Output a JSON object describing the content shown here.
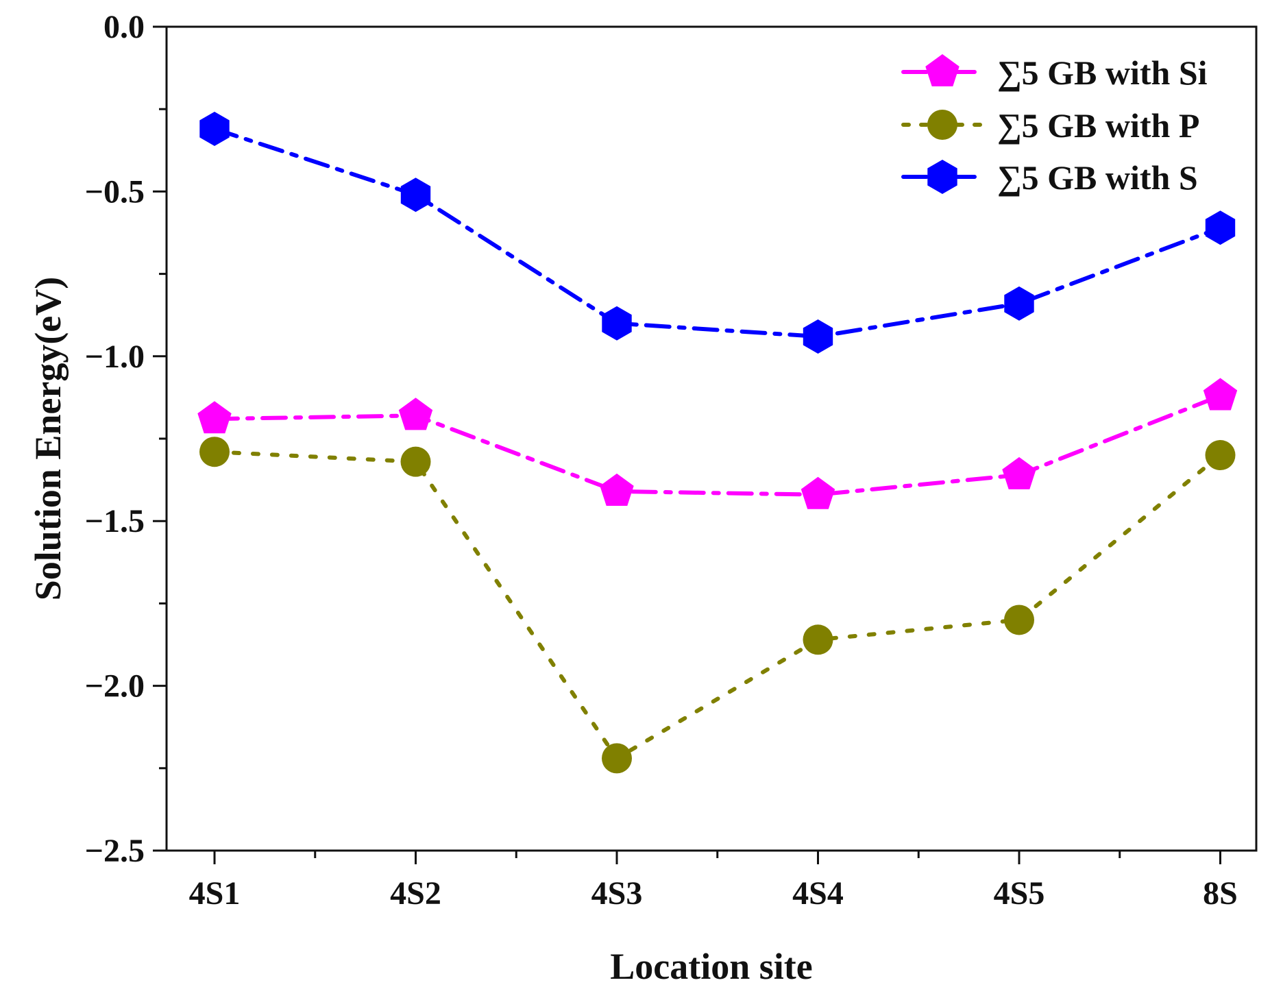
{
  "chart_data": {
    "type": "line",
    "title": "",
    "xlabel": "Location site",
    "ylabel": "Solution Energy(eV)",
    "categories": [
      "4S1",
      "4S2",
      "4S3",
      "4S4",
      "4S5",
      "8S"
    ],
    "ylim": [
      -2.5,
      0.0
    ],
    "yticks": [
      0.0,
      -0.5,
      -1.0,
      -1.5,
      -2.0,
      -2.5
    ],
    "ytick_labels": [
      "0.0",
      "−0.5",
      "−1.0",
      "−1.5",
      "−2.0",
      "−2.5"
    ],
    "grid": false,
    "legend_position": "top-right",
    "series": [
      {
        "name": "∑5 GB with Si",
        "color": "#ff00ff",
        "marker": "pentagon",
        "line_style": "dash-dot",
        "values": [
          -1.19,
          -1.18,
          -1.41,
          -1.42,
          -1.36,
          -1.12
        ]
      },
      {
        "name": "∑5 GB with P",
        "color": "#808000",
        "marker": "circle",
        "line_style": "dotted",
        "values": [
          -1.29,
          -1.32,
          -2.22,
          -1.86,
          -1.8,
          -1.3
        ]
      },
      {
        "name": "∑5 GB with S",
        "color": "#0000ff",
        "marker": "hexagon",
        "line_style": "dash-dot",
        "values": [
          -0.31,
          -0.51,
          -0.9,
          -0.94,
          -0.84,
          -0.61
        ]
      }
    ]
  }
}
